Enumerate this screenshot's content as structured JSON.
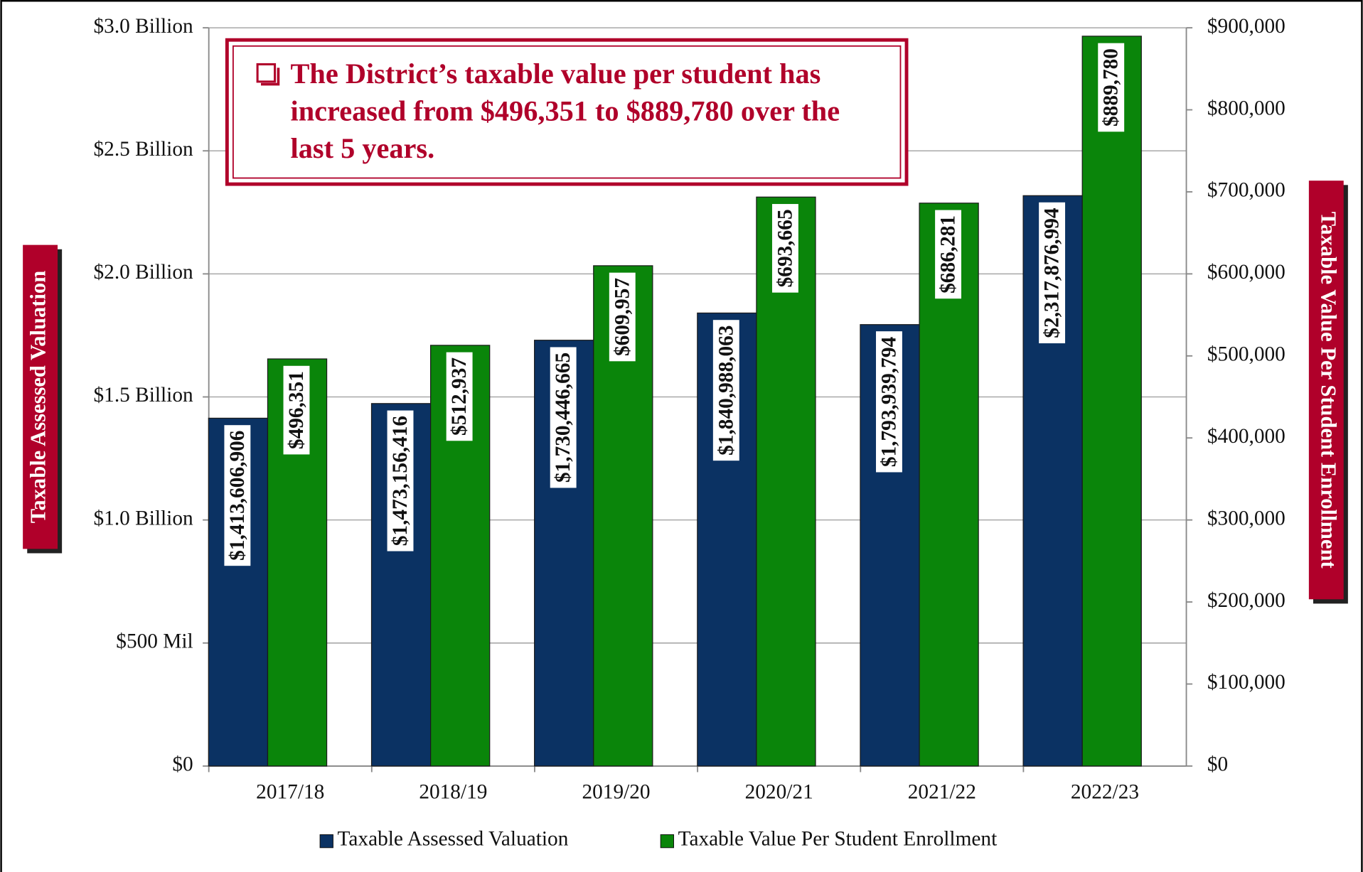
{
  "chart_data": {
    "type": "bar",
    "annotation": [
      "The District’s taxable value per student has",
      "increased from $496,351 to $889,780 over the",
      "last 5 years."
    ],
    "y_label": "Taxable Assessed Valuation",
    "y2_label": "Taxable Value Per Student Enrollment",
    "categories": [
      "2017/18",
      "2018/19",
      "2019/20",
      "2020/21",
      "2021/22",
      "2022/23"
    ],
    "series": [
      {
        "name": "Taxable Assessed Valuation",
        "color": "#0b3263",
        "values": [
          1413606906,
          1473156416,
          1730446665,
          1840988063,
          1793939794,
          2317876994
        ],
        "value_labels": [
          "$1,413,606,906",
          "$1,473,156,416",
          "$1,730,446,665",
          "$1,840,988,063",
          "$1,793,939,794",
          "$2,317,876,994"
        ]
      },
      {
        "name": "Taxable Value Per Student Enrollment",
        "color": "#0a850a",
        "axis": "y2",
        "values": [
          496351,
          512937,
          609957,
          693665,
          686281,
          889780
        ],
        "value_labels": [
          "$496,351",
          "$512,937",
          "$609,957",
          "$693,665",
          "$686,281",
          "$889,780"
        ]
      }
    ],
    "ylim": [
      0,
      3000000000
    ],
    "yticks": [
      {
        "value": 0,
        "label": "$0"
      },
      {
        "value": 500000000,
        "label": "$500 Mil"
      },
      {
        "value": 1000000000,
        "label": "$1.0 Billion"
      },
      {
        "value": 1500000000,
        "label": "$1.5 Billion"
      },
      {
        "value": 2000000000,
        "label": "$2.0 Billion"
      },
      {
        "value": 2500000000,
        "label": "$2.5 Billion"
      },
      {
        "value": 3000000000,
        "label": "$3.0 Billion"
      }
    ],
    "y2lim": [
      0,
      900000
    ],
    "y2ticks": [
      {
        "value": 0,
        "label": "$0"
      },
      {
        "value": 100000,
        "label": "$100,000"
      },
      {
        "value": 200000,
        "label": "$200,000"
      },
      {
        "value": 300000,
        "label": "$300,000"
      },
      {
        "value": 400000,
        "label": "$400,000"
      },
      {
        "value": 500000,
        "label": "$500,000"
      },
      {
        "value": 600000,
        "label": "$600,000"
      },
      {
        "value": 700000,
        "label": "$700,000"
      },
      {
        "value": 800000,
        "label": "$800,000"
      },
      {
        "value": 900000,
        "label": "$900,000"
      }
    ],
    "grid": true,
    "legend": "bottom"
  }
}
